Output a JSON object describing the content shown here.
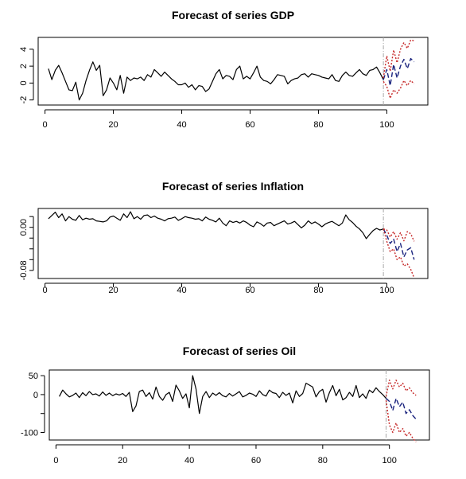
{
  "chart_data": [
    {
      "type": "line",
      "title": "Forecast of series GDP",
      "xlim": [
        -2,
        112
      ],
      "ylim": [
        -2.6,
        5.4
      ],
      "x_ticks": [
        0,
        20,
        40,
        60,
        80,
        100
      ],
      "y_ticks": [
        -2,
        0,
        2,
        4
      ],
      "y_tick_labels": [
        "-2",
        "0",
        "2",
        "4"
      ],
      "forecast_origin": 99,
      "colors": {
        "actual": "#000000",
        "forecast": "#1a237e",
        "interval": "#c62828",
        "origin_line": "#a8a8a8"
      },
      "series": [
        {
          "role": "actual",
          "x": [
            1,
            2,
            3,
            4,
            5,
            6,
            7,
            8,
            9,
            10,
            11,
            12,
            13,
            14,
            15,
            16,
            17,
            18,
            19,
            20,
            21,
            22,
            23,
            24,
            25,
            26,
            27,
            28,
            29,
            30,
            31,
            32,
            33,
            34,
            35,
            36,
            37,
            38,
            39,
            40,
            41,
            42,
            43,
            44,
            45,
            46,
            47,
            48,
            49,
            50,
            51,
            52,
            53,
            54,
            55,
            56,
            57,
            58,
            59,
            60,
            61,
            62,
            63,
            64,
            65,
            66,
            67,
            68,
            69,
            70,
            71,
            72,
            73,
            74,
            75,
            76,
            77,
            78,
            79,
            80,
            81,
            82,
            83,
            84,
            85,
            86,
            87,
            88,
            89,
            90,
            91,
            92,
            93,
            94,
            95,
            96,
            97,
            98,
            99
          ],
          "y": [
            1.7,
            0.4,
            1.5,
            2.1,
            1.2,
            0.2,
            -0.8,
            -0.9,
            0.1,
            -2.0,
            -1.2,
            0.3,
            1.5,
            2.5,
            1.5,
            2.1,
            -1.5,
            -0.8,
            0.6,
            0.0,
            -0.8,
            0.9,
            -1.2,
            0.7,
            0.3,
            0.6,
            0.5,
            0.7,
            0.3,
            1.0,
            0.7,
            1.6,
            1.2,
            0.8,
            1.3,
            0.9,
            0.5,
            0.2,
            -0.2,
            -0.2,
            0.0,
            -0.5,
            -0.2,
            -0.8,
            -0.3,
            -0.4,
            -1.0,
            -0.7,
            0.2,
            1.1,
            1.6,
            0.5,
            0.9,
            0.8,
            0.4,
            1.6,
            2.0,
            0.5,
            0.8,
            0.5,
            1.2,
            2.0,
            0.7,
            0.3,
            0.2,
            -0.1,
            0.4,
            1.0,
            0.9,
            0.8,
            -0.1,
            0.3,
            0.5,
            0.6,
            1.0,
            1.1,
            0.7,
            1.1,
            1.0,
            0.9,
            0.7,
            0.6,
            0.5,
            1.0,
            0.3,
            0.2,
            0.9,
            1.3,
            0.9,
            0.8,
            1.2,
            1.6,
            1.1,
            0.9,
            1.5,
            1.6,
            1.9,
            1.2,
            0.4
          ]
        },
        {
          "role": "forecast",
          "x": [
            99,
            100,
            101,
            102,
            103,
            104,
            105,
            106,
            107,
            108
          ],
          "y": [
            0.4,
            1.6,
            -0.3,
            2.2,
            0.6,
            2.0,
            2.8,
            1.7,
            2.9,
            2.5
          ]
        },
        {
          "role": "upper",
          "x": [
            99,
            100,
            101,
            102,
            103,
            104,
            105,
            106,
            107,
            108
          ],
          "y": [
            0.6,
            3.2,
            1.4,
            3.9,
            2.4,
            4.0,
            4.8,
            4.1,
            5.1,
            5.0
          ]
        },
        {
          "role": "lower",
          "x": [
            99,
            100,
            101,
            102,
            103,
            104,
            105,
            106,
            107,
            108
          ],
          "y": [
            0.2,
            -0.4,
            -1.8,
            -0.8,
            -1.2,
            -0.6,
            0.3,
            -0.3,
            0.3,
            -0.1
          ]
        }
      ]
    },
    {
      "type": "line",
      "title": "Forecast of series Inflation",
      "xlim": [
        -2,
        112
      ],
      "ylim": [
        -0.095,
        0.035
      ],
      "x_ticks": [
        0,
        20,
        40,
        60,
        80,
        100
      ],
      "y_ticks": [
        -0.08,
        -0.06,
        -0.04,
        -0.02,
        0.0,
        0.02
      ],
      "y_tick_labels": [
        "-0.08",
        "",
        "",
        "",
        "0.00",
        ""
      ],
      "forecast_origin": 99,
      "colors": {
        "actual": "#000000",
        "forecast": "#1a237e",
        "interval": "#c62828",
        "origin_line": "#a8a8a8"
      },
      "series": [
        {
          "role": "actual",
          "x": [
            1,
            2,
            3,
            4,
            5,
            6,
            7,
            8,
            9,
            10,
            11,
            12,
            13,
            14,
            15,
            16,
            17,
            18,
            19,
            20,
            21,
            22,
            23,
            24,
            25,
            26,
            27,
            28,
            29,
            30,
            31,
            32,
            33,
            34,
            35,
            36,
            37,
            38,
            39,
            40,
            41,
            42,
            43,
            44,
            45,
            46,
            47,
            48,
            49,
            50,
            51,
            52,
            53,
            54,
            55,
            56,
            57,
            58,
            59,
            60,
            61,
            62,
            63,
            64,
            65,
            66,
            67,
            68,
            69,
            70,
            71,
            72,
            73,
            74,
            75,
            76,
            77,
            78,
            79,
            80,
            81,
            82,
            83,
            84,
            85,
            86,
            87,
            88,
            89,
            90,
            91,
            92,
            93,
            94,
            95,
            96,
            97,
            98,
            99
          ],
          "y": [
            0.016,
            0.022,
            0.028,
            0.018,
            0.025,
            0.012,
            0.02,
            0.015,
            0.013,
            0.022,
            0.014,
            0.017,
            0.015,
            0.016,
            0.012,
            0.011,
            0.01,
            0.012,
            0.019,
            0.021,
            0.017,
            0.013,
            0.025,
            0.018,
            0.029,
            0.016,
            0.02,
            0.015,
            0.022,
            0.023,
            0.018,
            0.021,
            0.017,
            0.015,
            0.012,
            0.016,
            0.017,
            0.019,
            0.013,
            0.016,
            0.02,
            0.018,
            0.017,
            0.015,
            0.016,
            0.012,
            0.019,
            0.015,
            0.013,
            0.01,
            0.017,
            0.008,
            0.003,
            0.012,
            0.009,
            0.011,
            0.008,
            0.012,
            0.009,
            0.004,
            0.001,
            0.01,
            0.007,
            0.002,
            0.008,
            0.009,
            0.003,
            0.006,
            0.009,
            0.012,
            0.006,
            0.008,
            0.011,
            0.005,
            -0.001,
            0.004,
            0.012,
            0.007,
            0.01,
            0.006,
            0.001,
            0.006,
            0.009,
            0.011,
            0.007,
            0.003,
            0.008,
            0.023,
            0.014,
            0.009,
            0.002,
            -0.003,
            -0.01,
            -0.021,
            -0.013,
            -0.006,
            -0.002,
            -0.005,
            -0.003
          ]
        },
        {
          "role": "forecast",
          "x": [
            99,
            100,
            101,
            102,
            103,
            104,
            105,
            106,
            107,
            108
          ],
          "y": [
            -0.003,
            -0.015,
            -0.03,
            -0.022,
            -0.045,
            -0.03,
            -0.055,
            -0.042,
            -0.038,
            -0.06
          ]
        },
        {
          "role": "upper",
          "x": [
            99,
            100,
            101,
            102,
            103,
            104,
            105,
            106,
            107,
            108
          ],
          "y": [
            -0.003,
            -0.005,
            -0.018,
            -0.008,
            -0.022,
            -0.01,
            -0.025,
            -0.008,
            -0.012,
            -0.026
          ]
        },
        {
          "role": "lower",
          "x": [
            99,
            100,
            101,
            102,
            103,
            104,
            105,
            106,
            107,
            108
          ],
          "y": [
            -0.003,
            -0.026,
            -0.045,
            -0.04,
            -0.06,
            -0.055,
            -0.072,
            -0.068,
            -0.078,
            -0.094
          ]
        }
      ]
    },
    {
      "type": "line",
      "title": "Forecast of series Oil",
      "xlim": [
        -2,
        112
      ],
      "ylim": [
        -120,
        65
      ],
      "x_ticks": [
        0,
        20,
        40,
        60,
        80,
        100
      ],
      "y_ticks": [
        -100,
        -50,
        0,
        50
      ],
      "y_tick_labels": [
        "-100",
        "",
        "0",
        "50"
      ],
      "forecast_origin": 99,
      "colors": {
        "actual": "#000000",
        "forecast": "#1a237e",
        "interval": "#c62828",
        "origin_line": "#a8a8a8"
      },
      "series": [
        {
          "role": "actual",
          "x": [
            1,
            2,
            3,
            4,
            5,
            6,
            7,
            8,
            9,
            10,
            11,
            12,
            13,
            14,
            15,
            16,
            17,
            18,
            19,
            20,
            21,
            22,
            23,
            24,
            25,
            26,
            27,
            28,
            29,
            30,
            31,
            32,
            33,
            34,
            35,
            36,
            37,
            38,
            39,
            40,
            41,
            42,
            43,
            44,
            45,
            46,
            47,
            48,
            49,
            50,
            51,
            52,
            53,
            54,
            55,
            56,
            57,
            58,
            59,
            60,
            61,
            62,
            63,
            64,
            65,
            66,
            67,
            68,
            69,
            70,
            71,
            72,
            73,
            74,
            75,
            76,
            77,
            78,
            79,
            80,
            81,
            82,
            83,
            84,
            85,
            86,
            87,
            88,
            89,
            90,
            91,
            92,
            93,
            94,
            95,
            96,
            97,
            98,
            99
          ],
          "y": [
            -5,
            12,
            2,
            -6,
            -2,
            4,
            -8,
            5,
            -3,
            8,
            0,
            2,
            -4,
            7,
            -2,
            4,
            -3,
            2,
            -1,
            3,
            -5,
            6,
            -45,
            -30,
            8,
            12,
            -5,
            5,
            -12,
            20,
            -5,
            -15,
            0,
            6,
            -18,
            25,
            10,
            -10,
            2,
            -35,
            50,
            15,
            -50,
            -5,
            8,
            -8,
            4,
            -2,
            5,
            -3,
            -6,
            3,
            -4,
            2,
            8,
            -6,
            -2,
            4,
            1,
            -5,
            10,
            0,
            -4,
            12,
            5,
            3,
            -8,
            6,
            -2,
            4,
            -22,
            10,
            -5,
            3,
            30,
            25,
            20,
            -6,
            8,
            14,
            -20,
            5,
            24,
            -3,
            14,
            -14,
            -8,
            6,
            -5,
            24,
            -8,
            2,
            -10,
            12,
            5,
            18,
            8,
            0,
            -10
          ]
        },
        {
          "role": "forecast",
          "x": [
            99,
            100,
            101,
            102,
            103,
            104,
            105,
            106,
            107,
            108
          ],
          "y": [
            -10,
            -18,
            -42,
            -10,
            -32,
            -20,
            -50,
            -40,
            -55,
            -65
          ]
        },
        {
          "role": "upper",
          "x": [
            99,
            100,
            101,
            102,
            103,
            104,
            105,
            106,
            107,
            108
          ],
          "y": [
            -5,
            38,
            15,
            38,
            20,
            30,
            10,
            18,
            5,
            -2
          ]
        },
        {
          "role": "lower",
          "x": [
            99,
            100,
            101,
            102,
            103,
            104,
            105,
            106,
            107,
            108
          ],
          "y": [
            -15,
            -80,
            -100,
            -75,
            -100,
            -90,
            -110,
            -100,
            -115,
            -125
          ]
        }
      ]
    }
  ]
}
